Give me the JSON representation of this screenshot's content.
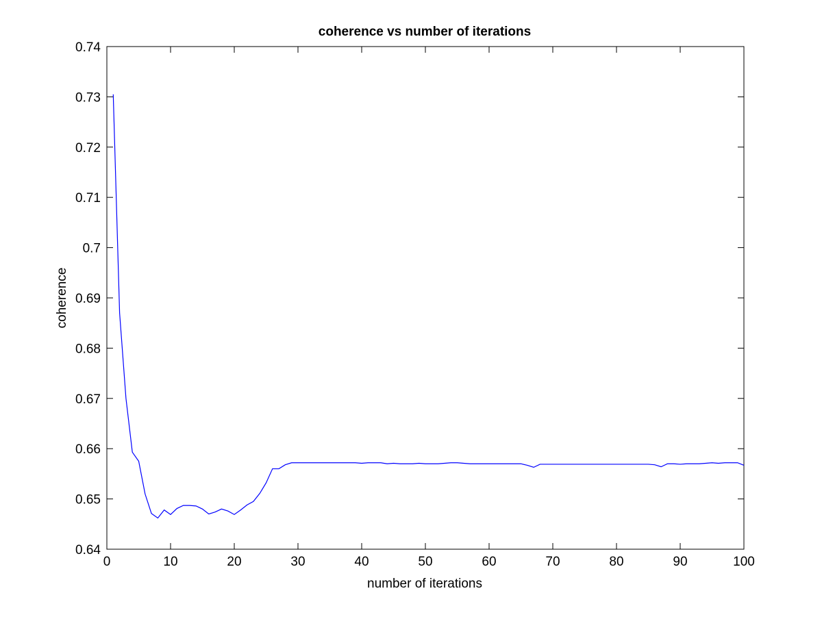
{
  "chart_data": {
    "type": "line",
    "title": "coherence vs number of iterations",
    "xlabel": "number of iterations",
    "ylabel": "coherence",
    "xlim": [
      0,
      100
    ],
    "ylim": [
      0.64,
      0.74
    ],
    "xticks": [
      0,
      10,
      20,
      30,
      40,
      50,
      60,
      70,
      80,
      90,
      100
    ],
    "xtick_labels": [
      "0",
      "10",
      "20",
      "30",
      "40",
      "50",
      "60",
      "70",
      "80",
      "90",
      "100"
    ],
    "yticks": [
      0.64,
      0.65,
      0.66,
      0.67,
      0.68,
      0.69,
      0.7,
      0.71,
      0.72,
      0.73,
      0.74
    ],
    "ytick_labels": [
      "0.64",
      "0.65",
      "0.66",
      "0.67",
      "0.68",
      "0.69",
      "0.7",
      "0.71",
      "0.72",
      "0.73",
      "0.74"
    ],
    "grid": false,
    "legend": "none",
    "series": [
      {
        "color": "#0000ff",
        "x": [
          1,
          2,
          3,
          4,
          5,
          6,
          7,
          8,
          9,
          10,
          11,
          12,
          13,
          14,
          15,
          16,
          17,
          18,
          19,
          20,
          21,
          22,
          23,
          24,
          25,
          26,
          27,
          28,
          29,
          30,
          31,
          32,
          33,
          34,
          35,
          36,
          37,
          38,
          39,
          40,
          41,
          42,
          43,
          44,
          45,
          46,
          47,
          48,
          49,
          50,
          51,
          52,
          53,
          54,
          55,
          56,
          57,
          58,
          59,
          60,
          61,
          62,
          63,
          64,
          65,
          66,
          67,
          68,
          69,
          70,
          71,
          72,
          73,
          74,
          75,
          76,
          77,
          78,
          79,
          80,
          81,
          82,
          83,
          84,
          85,
          86,
          87,
          88,
          89,
          90,
          91,
          92,
          93,
          94,
          95,
          96,
          97,
          98,
          99,
          100
        ],
        "y": [
          0.7305,
          0.687,
          0.67,
          0.6593,
          0.6575,
          0.651,
          0.6471,
          0.6462,
          0.6478,
          0.6469,
          0.6481,
          0.6487,
          0.6487,
          0.6486,
          0.648,
          0.647,
          0.6474,
          0.648,
          0.6476,
          0.6469,
          0.6478,
          0.6488,
          0.6495,
          0.6511,
          0.6532,
          0.656,
          0.656,
          0.6568,
          0.6572,
          0.6572,
          0.6572,
          0.6572,
          0.6572,
          0.6572,
          0.6572,
          0.6572,
          0.6572,
          0.6572,
          0.6572,
          0.6571,
          0.6572,
          0.6572,
          0.6572,
          0.657,
          0.6571,
          0.657,
          0.657,
          0.657,
          0.6571,
          0.657,
          0.657,
          0.657,
          0.6571,
          0.6572,
          0.6572,
          0.6571,
          0.657,
          0.657,
          0.657,
          0.657,
          0.657,
          0.657,
          0.657,
          0.657,
          0.657,
          0.6567,
          0.6563,
          0.6569,
          0.6569,
          0.6569,
          0.6569,
          0.6569,
          0.6569,
          0.6569,
          0.6569,
          0.6569,
          0.6569,
          0.6569,
          0.6569,
          0.6569,
          0.6569,
          0.6569,
          0.6569,
          0.6569,
          0.6569,
          0.6568,
          0.6564,
          0.657,
          0.657,
          0.6569,
          0.657,
          0.657,
          0.657,
          0.6571,
          0.6572,
          0.6571,
          0.6572,
          0.6572,
          0.6572,
          0.6567
        ]
      }
    ]
  }
}
